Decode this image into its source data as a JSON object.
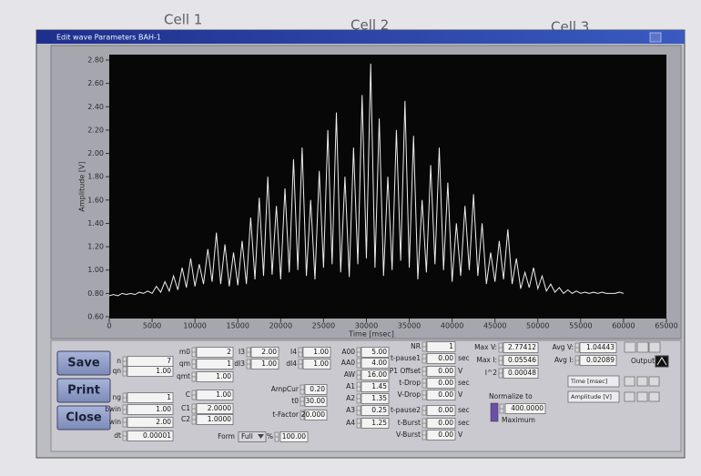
{
  "window": {
    "title": "Edit wave Parameters BAH-1"
  },
  "background_labels": [
    "Cell 1",
    "Cell 2",
    "Cell 3"
  ],
  "buttons": [
    "Save",
    "Print",
    "Close"
  ],
  "chart_data": {
    "type": "line",
    "x_label": "Time [msec]",
    "y_label": "Amplitude [V]",
    "color": "#ededed",
    "xlim": [
      0,
      65000
    ],
    "ylim": [
      0.6,
      2.8
    ],
    "xticks": [
      0,
      5000,
      10000,
      15000,
      20000,
      25000,
      30000,
      35000,
      40000,
      45000,
      50000,
      55000,
      60000,
      65000
    ],
    "yticks": [
      {
        "value": 0.6,
        "label": "0.60"
      },
      {
        "value": 0.8,
        "label": "0.80"
      },
      {
        "value": 1.0,
        "label": "1.00"
      },
      {
        "value": 1.2,
        "label": "1.20"
      },
      {
        "value": 1.4,
        "label": "1.40"
      },
      {
        "value": 1.6,
        "label": "1.60"
      },
      {
        "value": 1.8,
        "label": "1.80"
      },
      {
        "value": 2.0,
        "label": "2.00"
      },
      {
        "value": 2.2,
        "label": "2.20"
      },
      {
        "value": 2.4,
        "label": "2.40"
      },
      {
        "value": 2.6,
        "label": "2.60"
      },
      {
        "value": 2.8,
        "label": "2.80"
      }
    ],
    "x": [
      0,
      500,
      1000,
      1500,
      2000,
      2500,
      3000,
      3500,
      4000,
      4500,
      5000,
      5500,
      6000,
      6500,
      7000,
      7500,
      8000,
      8500,
      9000,
      9500,
      10000,
      10500,
      11000,
      11500,
      12000,
      12500,
      13000,
      13500,
      14000,
      14500,
      15000,
      15500,
      16000,
      16500,
      17000,
      17500,
      18000,
      18500,
      19000,
      19500,
      20000,
      20500,
      21000,
      21500,
      22000,
      22500,
      23000,
      23500,
      24000,
      24500,
      25000,
      25500,
      26000,
      26500,
      27000,
      27500,
      28000,
      28500,
      29000,
      29500,
      30000,
      30500,
      31000,
      31500,
      32000,
      32500,
      33000,
      33500,
      34000,
      34500,
      35000,
      35500,
      36000,
      36500,
      37000,
      37500,
      38000,
      38500,
      39000,
      39500,
      40000,
      40500,
      41000,
      41500,
      42000,
      42500,
      43000,
      43500,
      44000,
      44500,
      45000,
      45500,
      46000,
      46500,
      47000,
      47500,
      48000,
      48500,
      49000,
      49500,
      50000,
      50500,
      51000,
      51500,
      52000,
      52500,
      53000,
      53500,
      54000,
      54500,
      55000,
      55500,
      56000,
      56500,
      57000,
      57500,
      58000,
      58500,
      59000,
      59500,
      60000
    ],
    "values": [
      0.78,
      0.79,
      0.78,
      0.8,
      0.79,
      0.8,
      0.79,
      0.81,
      0.8,
      0.82,
      0.8,
      0.86,
      0.81,
      0.9,
      0.82,
      0.95,
      0.83,
      1.02,
      0.85,
      1.1,
      0.86,
      1.05,
      0.88,
      1.18,
      0.9,
      1.32,
      0.88,
      1.22,
      0.86,
      1.15,
      0.87,
      1.25,
      0.88,
      1.45,
      0.92,
      1.62,
      0.95,
      1.8,
      0.96,
      1.55,
      0.92,
      1.7,
      0.98,
      1.95,
      1.0,
      2.05,
      0.95,
      1.6,
      0.92,
      1.85,
      1.02,
      2.2,
      1.05,
      2.35,
      0.98,
      1.8,
      0.94,
      2.05,
      1.05,
      2.5,
      1.1,
      2.77,
      1.02,
      2.3,
      0.95,
      1.8,
      1.0,
      2.2,
      1.08,
      2.45,
      1.02,
      2.15,
      0.92,
      1.6,
      0.98,
      1.9,
      1.05,
      2.05,
      1.0,
      1.75,
      0.9,
      1.4,
      0.95,
      1.55,
      1.0,
      1.65,
      0.95,
      1.4,
      0.88,
      1.15,
      0.9,
      1.25,
      0.92,
      1.35,
      0.88,
      1.1,
      0.84,
      0.98,
      0.85,
      1.02,
      0.84,
      0.95,
      0.82,
      0.88,
      0.81,
      0.85,
      0.8,
      0.83,
      0.8,
      0.82,
      0.8,
      0.81,
      0.8,
      0.81,
      0.8,
      0.81,
      0.8,
      0.8,
      0.8,
      0.81,
      0.8
    ]
  },
  "controls": {
    "c1": [
      {
        "label": "n",
        "value": "7"
      },
      {
        "label": "qn",
        "value": "1.00"
      },
      {
        "label": "ng",
        "value": "1"
      },
      {
        "label": "bwin",
        "value": "1.00"
      },
      {
        "label": "win",
        "value": "2.00"
      },
      {
        "label": "dt",
        "value": "0.00001"
      }
    ],
    "c2": [
      {
        "label": "m0",
        "value": "2"
      },
      {
        "label": "qm",
        "value": "1"
      },
      {
        "label": "qmt",
        "value": "1.00"
      },
      {
        "label": "C",
        "value": "1.00"
      },
      {
        "label": "C1",
        "value": "2.0000"
      },
      {
        "label": "C2",
        "value": "1.0000"
      }
    ],
    "c3": [
      {
        "label": "I3",
        "value": "2.00"
      },
      {
        "label": "dI3",
        "value": "1.00"
      }
    ],
    "c4": [
      {
        "label": "I4",
        "value": "1.00"
      },
      {
        "label": "dI4",
        "value": "1.00"
      }
    ],
    "c5": [
      {
        "label": "AmpCur",
        "value": "0.20"
      },
      {
        "label": "t0",
        "value": "30.00"
      },
      {
        "label": "t-Factor",
        "value": "20.000"
      }
    ],
    "c6": [
      {
        "label": "A00",
        "value": "5.00"
      },
      {
        "label": "AA0",
        "value": "4.00"
      },
      {
        "label": "AW",
        "value": "16.00"
      },
      {
        "label": "A1",
        "value": "1.45"
      },
      {
        "label": "A2",
        "value": "1.35"
      },
      {
        "label": "A3",
        "value": "0.25"
      },
      {
        "label": "A4",
        "value": "1.25"
      }
    ],
    "c7": [
      {
        "label": "NR",
        "value": "1"
      },
      {
        "label": "t-pause1",
        "value": "0.00",
        "unit": "sec"
      },
      {
        "label": "P1 Offset",
        "value": "0.00",
        "unit": "V"
      },
      {
        "label": "t-Drop",
        "value": "0.00",
        "unit": "sec"
      },
      {
        "label": "V-Drop",
        "value": "0.00",
        "unit": "V"
      },
      {
        "label": "t-pause2",
        "value": "0.00",
        "unit": "sec"
      },
      {
        "label": "t-Burst",
        "value": "0.00",
        "unit": "sec"
      },
      {
        "label": "V-Burst",
        "value": "0.00",
        "unit": "V"
      }
    ],
    "s1": [
      {
        "label": "Max V:",
        "value": "2.77412"
      },
      {
        "label": "Max I:",
        "value": "0.05546"
      },
      {
        "label": "I^2",
        "value": "0.00048"
      }
    ],
    "s2": [
      {
        "label": "Avg V:",
        "value": "1.04443"
      },
      {
        "label": "Avg I:",
        "value": "0.02089"
      }
    ]
  },
  "form": {
    "label": "Form",
    "value": "Full",
    "percent_label": "%",
    "percent": "100.00"
  },
  "normalize": {
    "label": "Normalize to",
    "value": "400.0000",
    "mode": "Maximum"
  },
  "display": {
    "x_channel": "Time [msec]",
    "y_channel": "Amplitude [V]",
    "output": "Output"
  }
}
